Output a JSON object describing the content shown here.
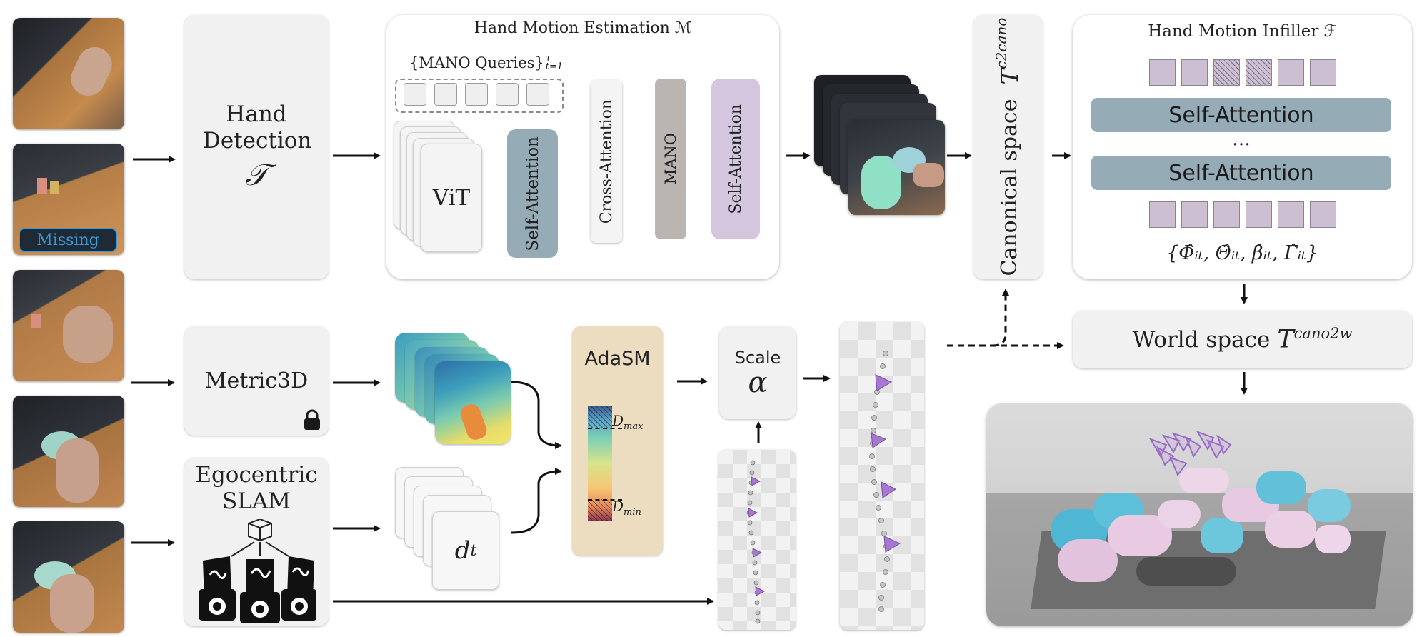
{
  "inputs": {
    "missing_label": "Missing"
  },
  "hand_detection": {
    "title": "Hand Detection",
    "symbol": "𝒯"
  },
  "hand_motion_estimation": {
    "title": "Hand Motion Estimation ℳ",
    "queries_label": "{MANO Queries}",
    "queries_sup": "τ",
    "queries_sub": "t=1",
    "vit": "ViT",
    "self_attention": "Self-Attention",
    "cross_attention": "Cross-Attention",
    "mano": "MANO",
    "self_attention_2": "Self-Attention"
  },
  "canonical": {
    "title": "Canonical space",
    "symbol_base": "T",
    "symbol_sup": "c2cano"
  },
  "infiller": {
    "title": "Hand Motion Infiller ℱ",
    "layer1": "Self-Attention",
    "ellipsis": "…",
    "layer2": "Self-Attention",
    "output": "{Φ̂ᵢₜ, Θ̂ᵢₜ, β̂ᵢₜ, Γ̂ᵢₜ}"
  },
  "world": {
    "title": "World space",
    "symbol_base": "T",
    "symbol_sup": "cano2w"
  },
  "metric3d": {
    "title": "Metric3D"
  },
  "slam": {
    "line1": "Egocentric",
    "line2": "SLAM"
  },
  "depth_frames": {
    "label_base": "d",
    "label_sub": "t"
  },
  "adasm": {
    "title": "AdaSM",
    "dmax_base": "D",
    "dmax_sub": "max",
    "dmin_base": "D",
    "dmin_sub": "min"
  },
  "scale": {
    "title": "Scale",
    "symbol": "α"
  },
  "colors": {
    "gray_box": "#f1f1f1",
    "self_attention_blue": "#95abb6",
    "mano_gray": "#bab5b0",
    "self_attention_purple": "#d5c6df",
    "adasm_beige": "#ecdcc0",
    "missing_blue": "#3d9ad8",
    "infiller_token": "#cbbfd1",
    "camera_purple": "#9a6bc6"
  }
}
